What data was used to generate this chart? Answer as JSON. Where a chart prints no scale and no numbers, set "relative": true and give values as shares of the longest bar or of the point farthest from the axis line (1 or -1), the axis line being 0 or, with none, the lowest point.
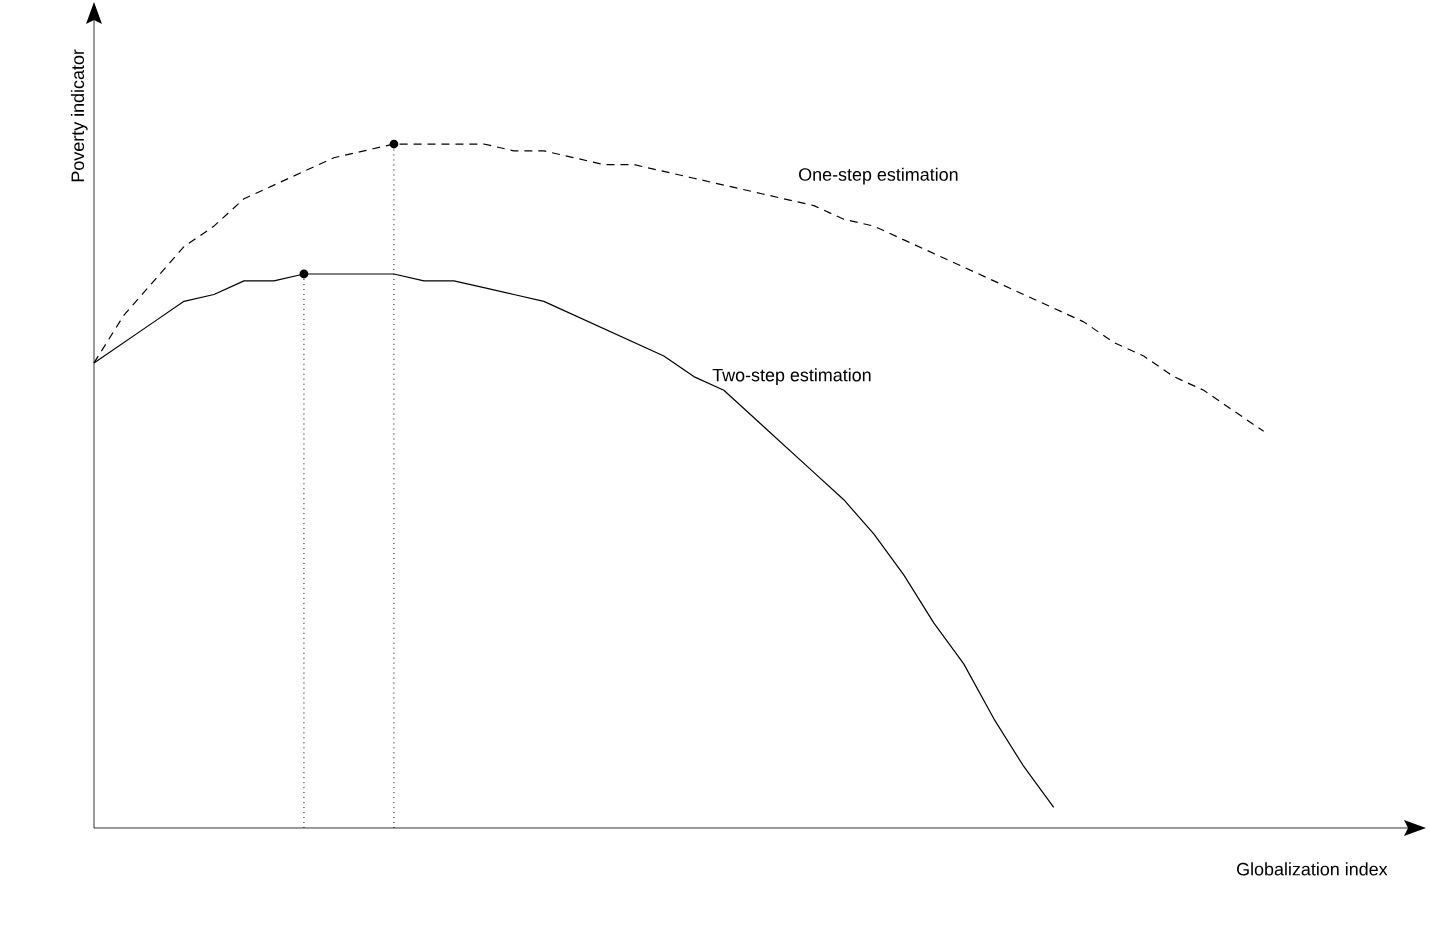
{
  "chart_data": {
    "type": "line",
    "relative": true,
    "xlabel": "Globalization index",
    "ylabel": "Poverty indicator",
    "categories": [
      null,
      null,
      null,
      null,
      null,
      null,
      null,
      null,
      null,
      null,
      null,
      null,
      null,
      null,
      null,
      null,
      null,
      null,
      null,
      null,
      null,
      null,
      null,
      null,
      null,
      null,
      null,
      null,
      null,
      null,
      null,
      null,
      null,
      null,
      null,
      null,
      null,
      null,
      null,
      null
    ],
    "series": [
      {
        "name": "One-step estimation",
        "color": "#000000",
        "line_style": "dashed",
        "values": [
          0.68,
          0.75,
          0.8,
          0.85,
          0.88,
          0.92,
          0.94,
          0.96,
          0.98,
          0.99,
          1.0,
          1.0,
          1.0,
          1.0,
          0.99,
          0.99,
          0.98,
          0.97,
          0.97,
          0.96,
          0.95,
          0.94,
          0.93,
          0.92,
          0.91,
          0.89,
          0.88,
          0.86,
          0.84,
          0.82,
          0.8,
          0.78,
          0.76,
          0.74,
          0.71,
          0.69,
          0.66,
          0.64,
          0.61,
          0.58
        ]
      },
      {
        "name": "Two-step estimation",
        "color": "#000000",
        "line_style": "solid",
        "values": [
          0.68,
          0.71,
          0.74,
          0.77,
          0.78,
          0.8,
          0.8,
          0.81,
          0.81,
          0.81,
          0.81,
          0.8,
          0.8,
          0.79,
          0.78,
          0.77,
          0.75,
          0.73,
          0.71,
          0.69,
          0.66,
          0.64,
          0.6,
          0.56,
          0.52,
          0.48,
          0.43,
          0.37,
          0.3,
          0.24,
          0.16,
          0.09,
          0.03,
          null,
          null,
          null,
          null,
          null,
          null,
          null
        ]
      }
    ]
  }
}
